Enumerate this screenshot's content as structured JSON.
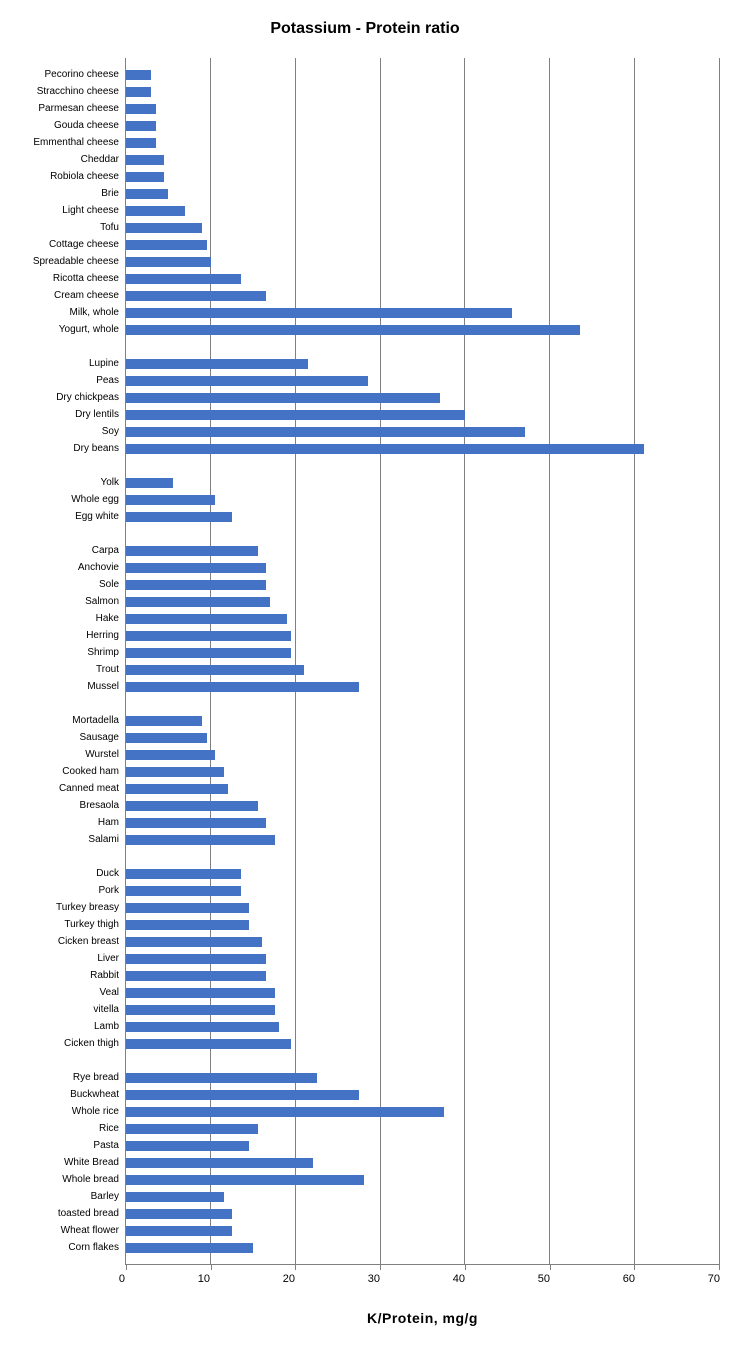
{
  "chart": {
    "type": "bar",
    "orientation": "horizontal",
    "title": "Potassium - Protein ratio",
    "title_fontsize": 16,
    "title_fontweight": "bold",
    "x_axis_label": "K/Protein,  mg/g",
    "x_axis_label_fontsize": 14,
    "x_axis_label_fontweight": "bold",
    "xlim": [
      0,
      70
    ],
    "xtick_step": 10,
    "xticks": [
      0,
      10,
      20,
      30,
      40,
      50,
      60,
      70
    ],
    "label_fontsize": 10,
    "tick_fontsize": 11,
    "bar_color": "#4472c4",
    "background_color": "#ffffff",
    "grid_color": "#808080",
    "axis_color": "#808080",
    "bar_height": 0.6,
    "groups": [
      {
        "items": [
          {
            "label": "Pecorino cheese",
            "value": 3
          },
          {
            "label": "Stracchino cheese",
            "value": 3
          },
          {
            "label": "Parmesan cheese",
            "value": 3.5
          },
          {
            "label": "Gouda cheese",
            "value": 3.5
          },
          {
            "label": "Emmenthal cheese",
            "value": 3.5
          },
          {
            "label": "Cheddar",
            "value": 4.5
          },
          {
            "label": "Robiola cheese",
            "value": 4.5
          },
          {
            "label": "Brie",
            "value": 5
          },
          {
            "label": "Light cheese",
            "value": 7
          },
          {
            "label": "Tofu",
            "value": 9
          },
          {
            "label": "Cottage cheese",
            "value": 9.5
          },
          {
            "label": "Spreadable cheese",
            "value": 10
          },
          {
            "label": "Ricotta cheese",
            "value": 13.5
          },
          {
            "label": "Cream cheese",
            "value": 16.5
          },
          {
            "label": "Milk, whole",
            "value": 45.5
          },
          {
            "label": "Yogurt, whole",
            "value": 53.5
          }
        ]
      },
      {
        "items": [
          {
            "label": "Lupine",
            "value": 21.5
          },
          {
            "label": "Peas",
            "value": 28.5
          },
          {
            "label": "Dry chickpeas",
            "value": 37
          },
          {
            "label": "Dry lentils",
            "value": 40
          },
          {
            "label": "Soy",
            "value": 47
          },
          {
            "label": "Dry beans",
            "value": 61
          }
        ]
      },
      {
        "items": [
          {
            "label": "Yolk",
            "value": 5.5
          },
          {
            "label": "Whole egg",
            "value": 10.5
          },
          {
            "label": "Egg white",
            "value": 12.5
          }
        ]
      },
      {
        "items": [
          {
            "label": "Carpa",
            "value": 15.5
          },
          {
            "label": "Anchovie",
            "value": 16.5
          },
          {
            "label": "Sole",
            "value": 16.5
          },
          {
            "label": "Salmon",
            "value": 17
          },
          {
            "label": "Hake",
            "value": 19
          },
          {
            "label": "Herring",
            "value": 19.5
          },
          {
            "label": "Shrimp",
            "value": 19.5
          },
          {
            "label": "Trout",
            "value": 21
          },
          {
            "label": "Mussel",
            "value": 27.5
          }
        ]
      },
      {
        "items": [
          {
            "label": "Mortadella",
            "value": 9
          },
          {
            "label": "Sausage",
            "value": 9.5
          },
          {
            "label": "Wurstel",
            "value": 10.5
          },
          {
            "label": "Cooked ham",
            "value": 11.5
          },
          {
            "label": "Canned meat",
            "value": 12
          },
          {
            "label": "Bresaola",
            "value": 15.5
          },
          {
            "label": "Ham",
            "value": 16.5
          },
          {
            "label": "Salami",
            "value": 17.5
          }
        ]
      },
      {
        "items": [
          {
            "label": "Duck",
            "value": 13.5
          },
          {
            "label": "Pork",
            "value": 13.5
          },
          {
            "label": "Turkey breasy",
            "value": 14.5
          },
          {
            "label": "Turkey thigh",
            "value": 14.5
          },
          {
            "label": "Cicken breast",
            "value": 16
          },
          {
            "label": "Liver",
            "value": 16.5
          },
          {
            "label": "Rabbit",
            "value": 16.5
          },
          {
            "label": "Veal",
            "value": 17.5
          },
          {
            "label": "vitella",
            "value": 17.5
          },
          {
            "label": "Lamb",
            "value": 18
          },
          {
            "label": "Cicken thigh",
            "value": 19.5
          }
        ]
      },
      {
        "items": [
          {
            "label": "Rye bread",
            "value": 22.5
          },
          {
            "label": "Buckwheat",
            "value": 27.5
          },
          {
            "label": "Whole rice",
            "value": 37.5
          },
          {
            "label": "Rice",
            "value": 15.5
          },
          {
            "label": "Pasta",
            "value": 14.5
          },
          {
            "label": "White Bread",
            "value": 22
          },
          {
            "label": "Whole bread",
            "value": 28
          },
          {
            "label": "Barley",
            "value": 11.5
          },
          {
            "label": "toasted bread",
            "value": 12.5
          },
          {
            "label": "Wheat flower",
            "value": 12.5
          },
          {
            "label": "Corn flakes",
            "value": 15
          }
        ]
      }
    ]
  }
}
